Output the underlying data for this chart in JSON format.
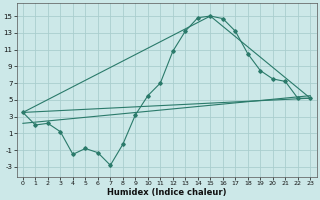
{
  "xlabel": "Humidex (Indice chaleur)",
  "background_color": "#cce8e8",
  "grid_color": "#aacece",
  "line_color": "#2a7a6a",
  "x_ticks": [
    0,
    1,
    2,
    3,
    4,
    5,
    6,
    7,
    8,
    9,
    10,
    11,
    12,
    13,
    14,
    15,
    16,
    17,
    18,
    19,
    20,
    21,
    22,
    23
  ],
  "y_ticks": [
    -3,
    -1,
    1,
    3,
    5,
    7,
    9,
    11,
    13,
    15
  ],
  "xlim": [
    -0.5,
    23.5
  ],
  "ylim": [
    -4.2,
    16.5
  ],
  "line1_x": [
    0,
    1,
    2,
    3,
    4,
    5,
    6,
    7,
    8,
    9,
    10,
    11,
    12,
    13,
    14,
    15,
    16,
    17,
    18,
    19,
    20,
    21,
    22,
    23
  ],
  "line1_y": [
    3.5,
    2.0,
    2.2,
    1.2,
    -1.5,
    -0.8,
    -1.3,
    -2.8,
    -0.3,
    3.2,
    5.5,
    7.0,
    10.8,
    13.2,
    14.8,
    15.0,
    14.7,
    13.2,
    10.5,
    8.5,
    7.5,
    7.2,
    5.2,
    5.2
  ],
  "line2_x": [
    0,
    15,
    23
  ],
  "line2_y": [
    3.5,
    15.0,
    5.2
  ],
  "line3_x": [
    0,
    23
  ],
  "line3_y": [
    3.5,
    5.2
  ],
  "line4_x": [
    0,
    23
  ],
  "line4_y": [
    2.2,
    5.5
  ]
}
